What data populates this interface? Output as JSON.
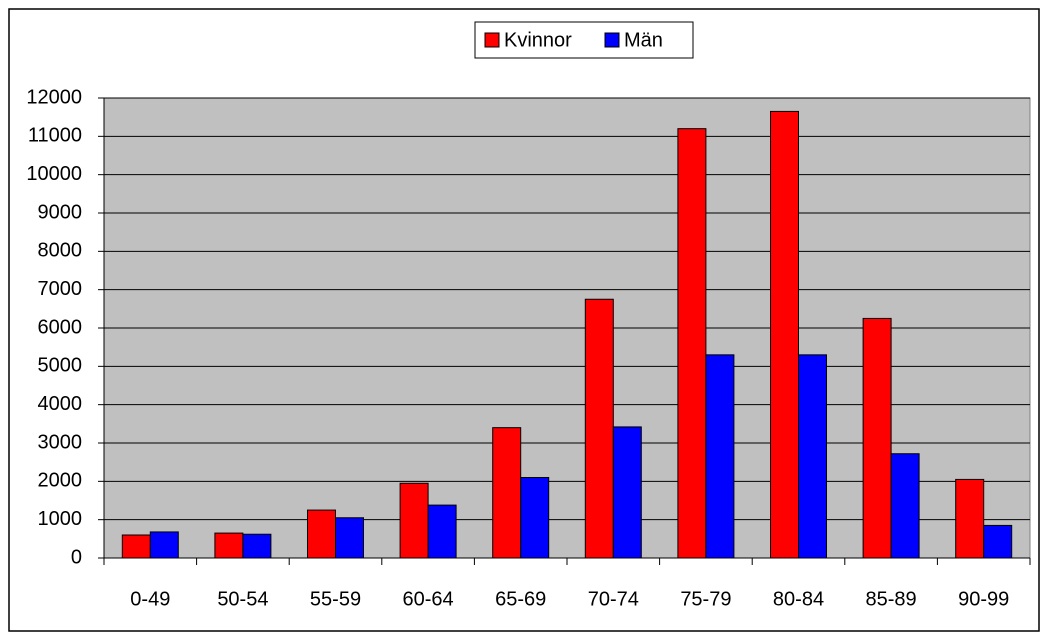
{
  "chart_data": {
    "type": "bar",
    "categories": [
      "0-49",
      "50-54",
      "55-59",
      "60-64",
      "65-69",
      "70-74",
      "75-79",
      "80-84",
      "85-89",
      "90-99"
    ],
    "series": [
      {
        "name": "Kvinnor",
        "color": "#ff0000",
        "values": [
          600,
          650,
          1250,
          1950,
          3400,
          6750,
          11200,
          11650,
          6250,
          2050
        ]
      },
      {
        "name": "Män",
        "color": "#0000ff",
        "values": [
          680,
          620,
          1050,
          1380,
          2100,
          3420,
          5300,
          5300,
          2720,
          850
        ]
      }
    ],
    "ylim": [
      0,
      12000
    ],
    "yticks": [
      0,
      1000,
      2000,
      3000,
      4000,
      5000,
      6000,
      7000,
      8000,
      9000,
      10000,
      11000,
      12000
    ],
    "grid": true,
    "legend": "top"
  }
}
